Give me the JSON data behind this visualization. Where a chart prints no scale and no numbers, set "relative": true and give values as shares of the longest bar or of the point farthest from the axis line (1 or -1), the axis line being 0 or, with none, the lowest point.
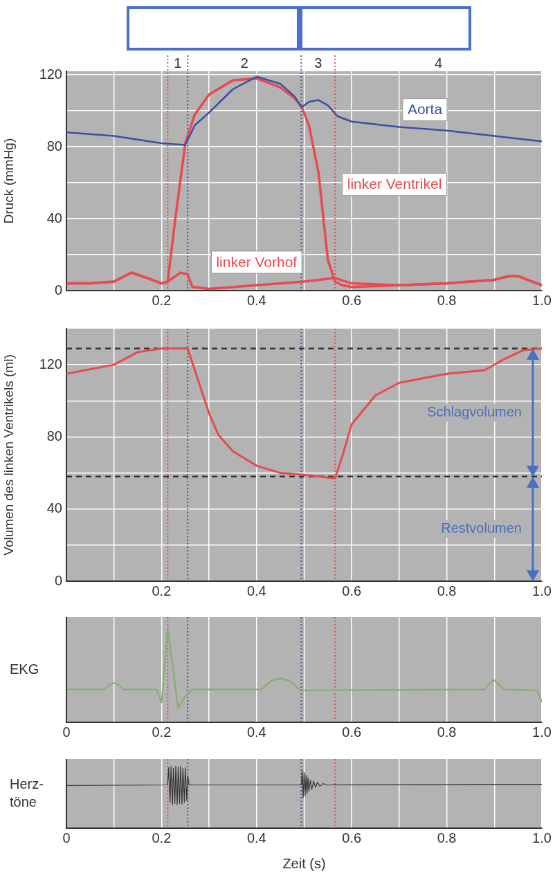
{
  "chart_data": [
    {
      "type": "line",
      "ylabel": "Druck (mmHg)",
      "xlim": [
        0,
        1
      ],
      "ylim": [
        0,
        122
      ],
      "marker": "none",
      "grid": true,
      "xticks": [
        {
          "value": 0.1,
          "label": null
        },
        0.2,
        {
          "value": 0.3,
          "label": null
        },
        0.4,
        {
          "value": 0.5,
          "label": null
        },
        0.6,
        {
          "value": 0.7,
          "label": null
        },
        0.8,
        {
          "value": 0.9,
          "label": null
        },
        {
          "value": 1,
          "label": "1.0"
        }
      ],
      "yticks": [
        0,
        {
          "value": 20,
          "label": null
        },
        40,
        {
          "value": 60,
          "label": null
        },
        80,
        {
          "value": 100,
          "label": null
        },
        120
      ],
      "annotations": [
        "1",
        "2",
        "3",
        "4"
      ],
      "ref_lines": [
        {
          "axis": "x",
          "value": 0.213,
          "color": "#d9534f",
          "line_style": "dotted"
        },
        {
          "axis": "x",
          "value": 0.255,
          "color": "#3a58a8",
          "line_style": "dotted"
        },
        {
          "axis": "x",
          "value": 0.494,
          "color": "#3a58a8",
          "line_style": "dotted"
        },
        {
          "axis": "x",
          "value": 0.565,
          "color": "#d9534f",
          "line_style": "dotted"
        }
      ],
      "series": [
        {
          "name": "Aorta",
          "color": "#3d4fa0",
          "x": [
            0,
            0.1,
            0.2,
            0.25,
            0.27,
            0.3,
            0.35,
            0.4,
            0.45,
            0.48,
            0.495,
            0.51,
            0.53,
            0.55,
            0.57,
            0.6,
            0.7,
            0.8,
            0.9,
            1
          ],
          "values": [
            88,
            86,
            82,
            81,
            92,
            99,
            112,
            119,
            115,
            108,
            102,
            105,
            106,
            103,
            97,
            94,
            91,
            89,
            86,
            83
          ]
        },
        {
          "name": "linker Ventrikel",
          "color": "#e84a4f",
          "x": [
            0,
            0.05,
            0.1,
            0.137,
            0.17,
            0.2,
            0.213,
            0.23,
            0.25,
            0.27,
            0.3,
            0.35,
            0.4,
            0.45,
            0.48,
            0.495,
            0.51,
            0.53,
            0.55,
            0.565,
            0.58,
            0.6,
            0.7,
            0.8,
            0.9,
            0.93,
            0.95,
            1
          ],
          "values": [
            4,
            4,
            5,
            10,
            7,
            4,
            5,
            42,
            82,
            98,
            109,
            117,
            118,
            113,
            107,
            102,
            92,
            66,
            17,
            5,
            3,
            2,
            3,
            4,
            6,
            8,
            8,
            3
          ]
        },
        {
          "name": "linker Vorhof",
          "color": "#e84a4f",
          "x": [
            0,
            0.05,
            0.1,
            0.137,
            0.17,
            0.2,
            0.213,
            0.24,
            0.255,
            0.265,
            0.3,
            0.4,
            0.5,
            0.565,
            0.6,
            0.7,
            0.8,
            0.9,
            0.93,
            0.95,
            1
          ],
          "values": [
            4,
            4,
            5,
            10,
            7,
            4,
            5,
            10,
            9,
            2,
            1,
            3,
            5,
            7,
            4,
            3,
            4,
            6,
            8,
            8,
            3
          ]
        }
      ]
    },
    {
      "type": "line",
      "ylabel": "Volumen des linken Ventrikels (ml)",
      "xlim": [
        0,
        1
      ],
      "ylim": [
        0,
        140
      ],
      "marker": "none",
      "grid": true,
      "xticks": [
        {
          "value": 0.1,
          "label": null
        },
        0.2,
        {
          "value": 0.3,
          "label": null
        },
        0.4,
        {
          "value": 0.5,
          "label": null
        },
        0.6,
        {
          "value": 0.7,
          "label": null
        },
        0.8,
        {
          "value": 0.9,
          "label": null
        },
        {
          "value": 1,
          "label": "1.0"
        }
      ],
      "yticks": [
        0,
        {
          "value": 20,
          "label": null
        },
        40,
        {
          "value": 60,
          "label": null
        },
        80,
        {
          "value": 100,
          "label": null
        },
        120
      ],
      "annotations": [
        "Schlagvolumen",
        "Restvolumen"
      ],
      "ref_lines": [
        {
          "axis": "x",
          "value": 0.213,
          "color": "#d9534f",
          "line_style": "dotted"
        },
        {
          "axis": "x",
          "value": 0.255,
          "color": "#3a58a8",
          "line_style": "dotted"
        },
        {
          "axis": "x",
          "value": 0.494,
          "color": "#3a58a8",
          "line_style": "dotted"
        },
        {
          "axis": "x",
          "value": 0.565,
          "color": "#d9534f",
          "line_style": "dotted"
        },
        {
          "axis": "y",
          "value": 129,
          "color": "#333333",
          "line_style": "dashed"
        },
        {
          "axis": "y",
          "value": 58,
          "color": "#333333",
          "line_style": "dashed"
        }
      ],
      "series": [
        {
          "color": "#e84a4f",
          "x": [
            0,
            0.1,
            0.15,
            0.2,
            0.255,
            0.27,
            0.3,
            0.32,
            0.35,
            0.4,
            0.45,
            0.5,
            0.565,
            0.58,
            0.6,
            0.65,
            0.7,
            0.8,
            0.88,
            0.92,
            0.96,
            1
          ],
          "values": [
            115,
            120,
            127,
            129,
            129,
            117,
            93,
            81,
            72,
            64,
            60,
            59,
            57,
            69,
            87,
            103,
            110,
            115,
            117,
            123,
            128,
            129
          ]
        }
      ]
    },
    {
      "type": "line",
      "ylabel": "EKG",
      "relative": true,
      "xlim": [
        0,
        1
      ],
      "marker": "none",
      "grid": "x",
      "xticks": [
        0,
        {
          "value": 0.1,
          "label": null
        },
        0.2,
        {
          "value": 0.3,
          "label": null
        },
        0.4,
        {
          "value": 0.5,
          "label": null
        },
        0.6,
        {
          "value": 0.7,
          "label": null
        },
        0.8,
        {
          "value": 0.9,
          "label": null
        },
        {
          "value": 1,
          "label": "1.0"
        }
      ],
      "ref_lines": [
        {
          "axis": "x",
          "value": 0.213,
          "color": "#d9534f",
          "line_style": "dotted"
        },
        {
          "axis": "x",
          "value": 0.255,
          "color": "#3a58a8",
          "line_style": "dotted"
        },
        {
          "axis": "x",
          "value": 0.494,
          "color": "#3a58a8",
          "line_style": "dotted"
        },
        {
          "axis": "x",
          "value": 0.565,
          "color": "#d9534f",
          "line_style": "dotted"
        }
      ],
      "series": [
        {
          "color": "#7fb069",
          "x": [
            0,
            0.08,
            0.09,
            0.1,
            0.11,
            0.12,
            0.19,
            0.2,
            0.213,
            0.235,
            0.25,
            0.265,
            0.41,
            0.43,
            0.45,
            0.47,
            0.49,
            0.5,
            0.88,
            0.89,
            0.9,
            0.91,
            0.92,
            0.99,
            1
          ],
          "values": [
            0.35,
            0.35,
            0.4,
            0.42,
            0.4,
            0.35,
            0.35,
            0.21,
            1,
            0.15,
            0.28,
            0.35,
            0.35,
            0.44,
            0.47,
            0.44,
            0.35,
            0.34,
            0.35,
            0.42,
            0.45,
            0.4,
            0.35,
            0.34,
            0.22
          ]
        }
      ]
    },
    {
      "type": "line",
      "ylabel": "Herz-\ntöne",
      "xlabel": "Zeit (s)",
      "relative": true,
      "xlim": [
        0,
        1
      ],
      "marker": "none",
      "grid": "x",
      "xticks": [
        0,
        {
          "value": 0.1,
          "label": null
        },
        0.2,
        {
          "value": 0.3,
          "label": null
        },
        0.4,
        {
          "value": 0.5,
          "label": null
        },
        0.6,
        {
          "value": 0.7,
          "label": null
        },
        0.8,
        {
          "value": 0.9,
          "label": null
        },
        {
          "value": 1,
          "label": "1.0"
        }
      ],
      "ref_lines": [
        {
          "axis": "x",
          "value": 0.213,
          "color": "#d9534f",
          "line_style": "dotted"
        },
        {
          "axis": "x",
          "value": 0.255,
          "color": "#3a58a8",
          "line_style": "dotted"
        },
        {
          "axis": "x",
          "value": 0.494,
          "color": "#3a58a8",
          "line_style": "dotted"
        },
        {
          "axis": "x",
          "value": 0.565,
          "color": "#d9534f",
          "line_style": "dotted"
        }
      ],
      "series": [
        {
          "color": "#333333",
          "x": [
            0,
            0.213,
            0.215,
            0.218,
            0.22,
            0.223,
            0.225,
            0.228,
            0.23,
            0.233,
            0.235,
            0.238,
            0.24,
            0.243,
            0.245,
            0.248,
            0.25,
            0.253,
            0.255,
            0.258,
            0.494,
            0.496,
            0.498,
            0.5,
            0.502,
            0.504,
            0.506,
            0.508,
            0.51,
            0.513,
            0.516,
            0.52,
            0.524,
            0.528,
            0.533,
            0.54,
            0.55,
            1
          ],
          "values": [
            0.69,
            0.7,
            0.98,
            0.42,
            1,
            0.38,
            0.97,
            0.4,
            1,
            0.38,
            0.99,
            0.4,
            1,
            0.39,
            0.97,
            0.42,
            0.98,
            0.45,
            0.85,
            0.7,
            0.7,
            0.93,
            0.5,
            0.9,
            0.52,
            0.86,
            0.56,
            0.82,
            0.6,
            0.78,
            0.63,
            0.76,
            0.66,
            0.74,
            0.68,
            0.72,
            0.7,
            0.71
          ]
        }
      ]
    }
  ]
}
